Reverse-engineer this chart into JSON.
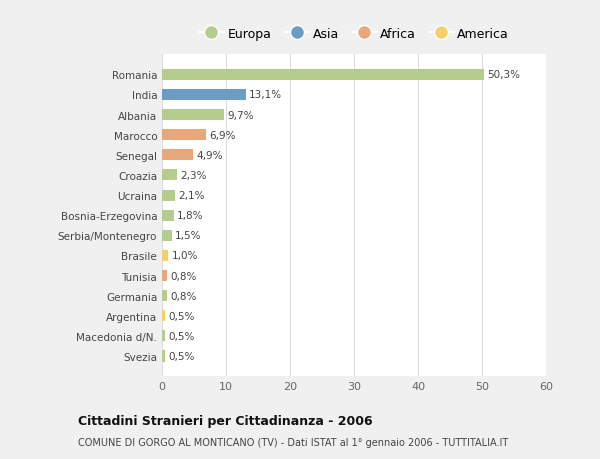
{
  "categories": [
    "Romania",
    "India",
    "Albania",
    "Marocco",
    "Senegal",
    "Croazia",
    "Ucraina",
    "Bosnia-Erzegovina",
    "Serbia/Montenegro",
    "Brasile",
    "Tunisia",
    "Germania",
    "Argentina",
    "Macedonia d/N.",
    "Svezia"
  ],
  "values": [
    50.3,
    13.1,
    9.7,
    6.9,
    4.9,
    2.3,
    2.1,
    1.8,
    1.5,
    1.0,
    0.8,
    0.8,
    0.5,
    0.5,
    0.5
  ],
  "labels": [
    "50,3%",
    "13,1%",
    "9,7%",
    "6,9%",
    "4,9%",
    "2,3%",
    "2,1%",
    "1,8%",
    "1,5%",
    "1,0%",
    "0,8%",
    "0,8%",
    "0,5%",
    "0,5%",
    "0,5%"
  ],
  "continents": [
    "Europa",
    "Asia",
    "Europa",
    "Africa",
    "Africa",
    "Europa",
    "Europa",
    "Europa",
    "Europa",
    "America",
    "Africa",
    "Europa",
    "America",
    "Europa",
    "Europa"
  ],
  "colors": {
    "Europa": "#b5cc8e",
    "Asia": "#6b9dc2",
    "Africa": "#e8a87c",
    "America": "#f2d16b"
  },
  "title": "Cittadini Stranieri per Cittadinanza - 2006",
  "subtitle": "COMUNE DI GORGO AL MONTICANO (TV) - Dati ISTAT al 1° gennaio 2006 - TUTTITALIA.IT",
  "xlim": [
    0,
    60
  ],
  "xticks": [
    0,
    10,
    20,
    30,
    40,
    50,
    60
  ],
  "bg_color": "#f0f0f0",
  "plot_bg_color": "#ffffff"
}
